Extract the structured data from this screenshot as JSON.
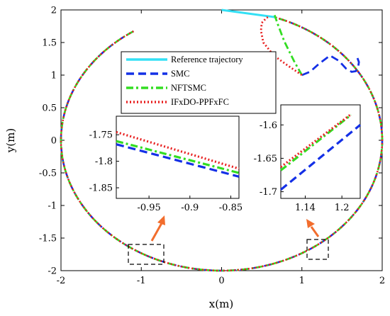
{
  "chart_data": {
    "type": "line",
    "xlabel": "x(m)",
    "ylabel": "y(m)",
    "xlim": [
      -2,
      2
    ],
    "ylim": [
      -2,
      2
    ],
    "xticks": [
      "-2",
      "-1",
      "0",
      "1",
      "2"
    ],
    "yticks": [
      "-2",
      "-1.5",
      "-1",
      "-0.5",
      "0",
      "0.5",
      "1",
      "1.5",
      "2"
    ],
    "legend_position": "upper-middle",
    "series": [
      {
        "name": "Reference trajectory",
        "color": "#33e0f5",
        "style": "solid",
        "x": [
          0.0,
          0.66
        ],
        "y": [
          2.0,
          1.89
        ]
      },
      {
        "name": "SMC",
        "color": "#1430e6",
        "style": "dashed",
        "x": [
          1.0,
          1.1,
          1.22,
          1.35,
          1.46,
          1.55,
          1.62,
          1.67,
          1.7,
          1.71,
          1.68
        ],
        "y": [
          1.0,
          1.05,
          1.18,
          1.3,
          1.22,
          1.1,
          1.05,
          1.06,
          1.12,
          1.2,
          1.3
        ]
      },
      {
        "name": "NFTSMC",
        "color": "#33dd22",
        "style": "dashdot",
        "x": [
          1.0,
          0.9,
          0.78,
          0.7,
          0.66
        ],
        "y": [
          1.0,
          1.22,
          1.52,
          1.78,
          1.92
        ]
      },
      {
        "name": "IFxDO-PPFxFC",
        "color": "#e82020",
        "style": "dotted",
        "x": [
          1.0,
          0.82,
          0.65,
          0.52,
          0.49,
          0.5,
          0.56,
          0.6
        ],
        "y": [
          1.0,
          1.15,
          1.3,
          1.5,
          1.68,
          1.8,
          1.88,
          1.9
        ]
      }
    ],
    "insets": [
      {
        "xlim": [
          -0.99,
          -0.84
        ],
        "ylim": [
          -1.87,
          -1.715
        ],
        "xticks": [
          "-0.95",
          "-0.9",
          "-0.85"
        ],
        "yticks": [
          "-1.75",
          "-1.8",
          "-1.85"
        ],
        "series": [
          {
            "name": "SMC",
            "x": [
              -0.99,
              -0.84
            ],
            "y": [
              -1.768,
              -1.829
            ]
          },
          {
            "name": "NFTSMC",
            "x": [
              -0.99,
              -0.84
            ],
            "y": [
              -1.762,
              -1.822
            ]
          },
          {
            "name": "IFxDO-PPFxFC",
            "x": [
              -0.99,
              -0.84
            ],
            "y": [
              -1.745,
              -1.814
            ]
          }
        ]
      },
      {
        "xlim": [
          1.1,
          1.23
        ],
        "ylim": [
          -1.71,
          -1.57
        ],
        "xticks": [
          "1.14",
          "1.2"
        ],
        "yticks": [
          "-1.6",
          "-1.65",
          "-1.7"
        ],
        "series": [
          {
            "name": "SMC",
            "x": [
              1.1,
              1.23
            ],
            "y": [
              -1.697,
              -1.6
            ]
          },
          {
            "name": "NFTSMC",
            "x": [
              1.1,
              1.215
            ],
            "y": [
              -1.668,
              -1.585
            ]
          },
          {
            "name": "IFxDO-PPFxFC",
            "x": [
              1.1,
              1.215
            ],
            "y": [
              -1.663,
              -1.584
            ]
          }
        ]
      }
    ]
  },
  "colors": {
    "reference": "#33e0f5",
    "smc": "#1430e6",
    "nftsmc": "#33dd22",
    "ifxdo": "#e82020",
    "arrow": "#f26d2d"
  }
}
